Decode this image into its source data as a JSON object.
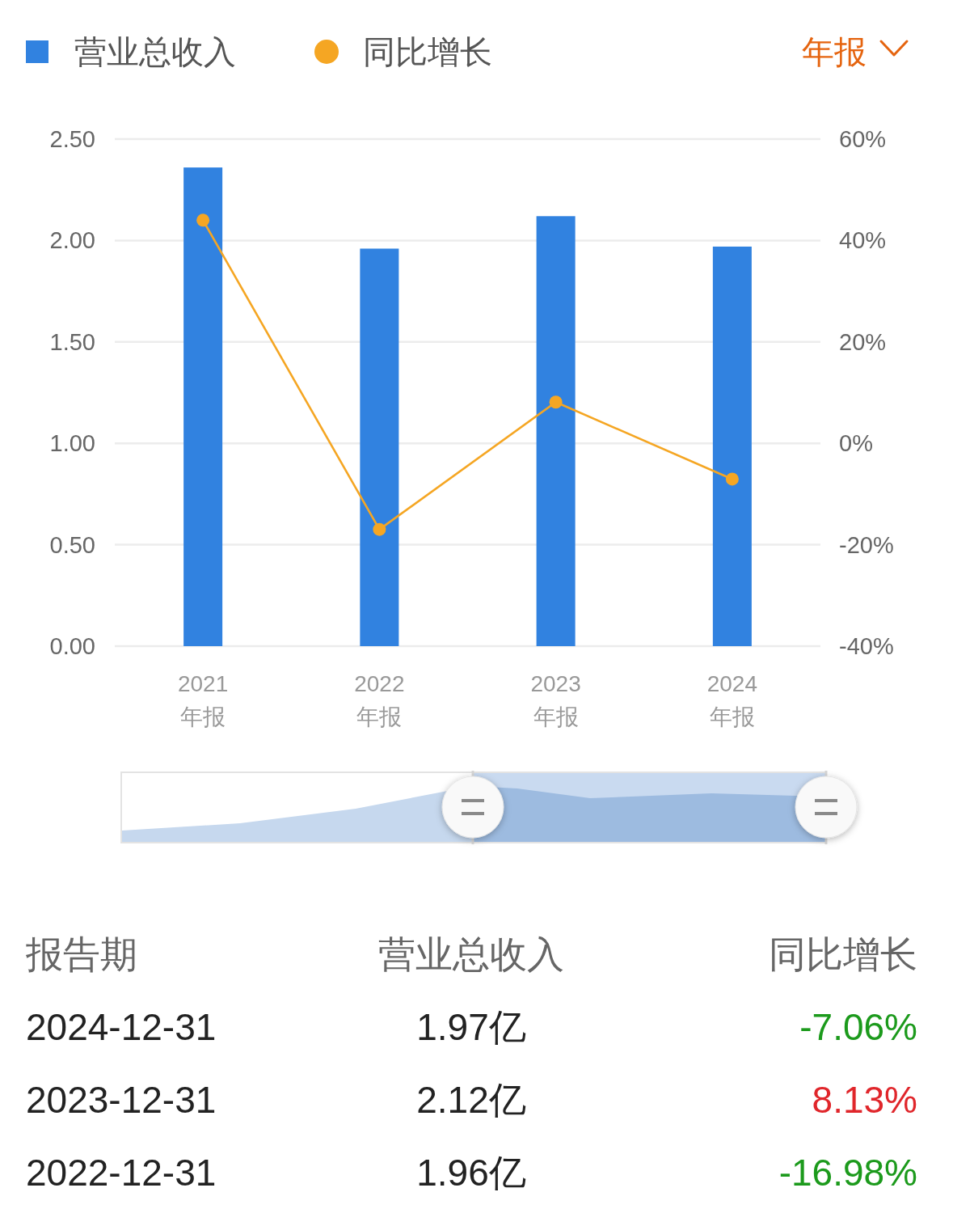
{
  "chart_data": {
    "type": "bar",
    "categories": [
      "2021\n年报",
      "2022\n年报",
      "2023\n年报",
      "2024\n年报"
    ],
    "series": [
      {
        "name": "营业总收入",
        "color": "#3182e0",
        "values": [
          2.36,
          1.96,
          2.12,
          1.97
        ]
      },
      {
        "name": "同比增长",
        "type": "line",
        "axis": "y2",
        "color": "#f5a623",
        "marker": "circle",
        "values": [
          44,
          -16.98,
          8.13,
          -7.06
        ]
      }
    ],
    "ylim": [
      0,
      2.5
    ],
    "yticks": [
      {
        "value": 0,
        "label": "0.00"
      },
      {
        "value": 0.5,
        "label": "0.50"
      },
      {
        "value": 1,
        "label": "1.00"
      },
      {
        "value": 1.5,
        "label": "1.50"
      },
      {
        "value": 2,
        "label": "2.00"
      },
      {
        "value": 2.5,
        "label": "2.50"
      }
    ],
    "y2lim": [
      -40,
      60
    ],
    "y2ticks": [
      {
        "value": -40,
        "label": "-40%"
      },
      {
        "value": -20,
        "label": "-20%"
      },
      {
        "value": 0,
        "label": "0%"
      },
      {
        "value": 20,
        "label": "20%"
      },
      {
        "value": 40,
        "label": "40%"
      },
      {
        "value": 60,
        "label": "60%"
      }
    ],
    "grid": "y",
    "legend": "top left",
    "annotations": [
      "年报",
      "报告期",
      "2024-12-31",
      "1.97亿",
      "-7.06%",
      "2023-12-31",
      "2.12亿",
      "8.13%",
      "2022-12-31",
      "1.96亿",
      "-16.98%"
    ]
  }
}
